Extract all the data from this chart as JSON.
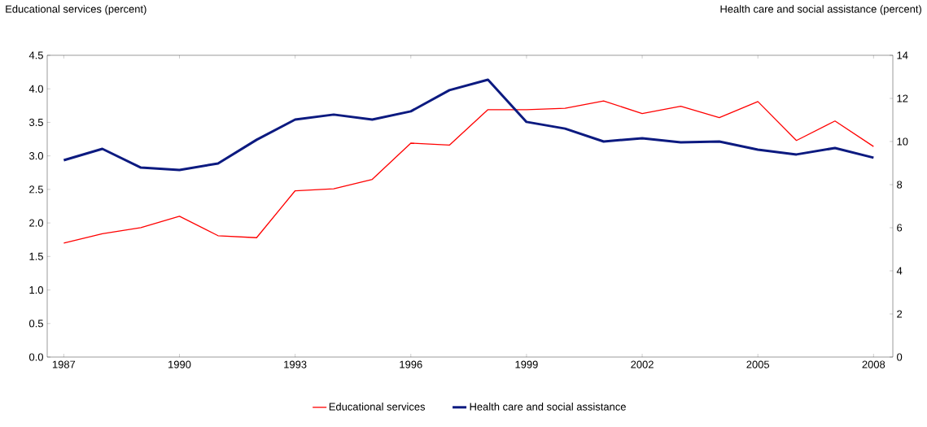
{
  "chart_data": {
    "type": "line",
    "ylabel": "Educational services (percent)",
    "y2label": "Health care and social assistance (percent)",
    "x": [
      1987,
      1988,
      1989,
      1990,
      1991,
      1992,
      1993,
      1994,
      1995,
      1996,
      1997,
      1998,
      1999,
      2000,
      2001,
      2002,
      2003,
      2004,
      2005,
      2006,
      2007,
      2008
    ],
    "xlim": [
      1986.57,
      2008.5
    ],
    "xticks": [
      1987,
      1990,
      1993,
      1996,
      1999,
      2002,
      2005,
      2008
    ],
    "ylim": [
      0,
      4.5
    ],
    "yticks": [
      {
        "value": 0,
        "label": "0.0"
      },
      {
        "value": 0.5,
        "label": "0.5"
      },
      {
        "value": 1,
        "label": "1.0"
      },
      {
        "value": 1.5,
        "label": "1.5"
      },
      {
        "value": 2,
        "label": "2.0"
      },
      {
        "value": 2.5,
        "label": "2.5"
      },
      {
        "value": 3,
        "label": "3.0"
      },
      {
        "value": 3.5,
        "label": "3.5"
      },
      {
        "value": 4,
        "label": "4.0"
      },
      {
        "value": 4.5,
        "label": "4.5"
      }
    ],
    "y2lim": [
      0,
      14
    ],
    "y2ticks": [
      0,
      2,
      4,
      6,
      8,
      10,
      12,
      14
    ],
    "legend": "bottom",
    "series": [
      {
        "name": "Educational services",
        "color": "#ff0000",
        "values": [
          1.7,
          1.84,
          1.93,
          2.1,
          1.81,
          1.78,
          2.48,
          2.51,
          2.65,
          3.19,
          3.16,
          3.69,
          3.69,
          3.71,
          3.82,
          3.63,
          3.74,
          3.57,
          3.81,
          3.23,
          3.52,
          3.14
        ]
      },
      {
        "name": "Health care and social assistance",
        "color": "#0c1a80",
        "axis": "y2",
        "values": [
          9.13,
          9.66,
          8.79,
          8.68,
          8.98,
          10.08,
          11.02,
          11.25,
          11.02,
          11.4,
          12.38,
          12.87,
          10.91,
          10.6,
          10.0,
          10.15,
          9.96,
          10.0,
          9.62,
          9.4,
          9.7,
          9.25
        ]
      }
    ]
  }
}
